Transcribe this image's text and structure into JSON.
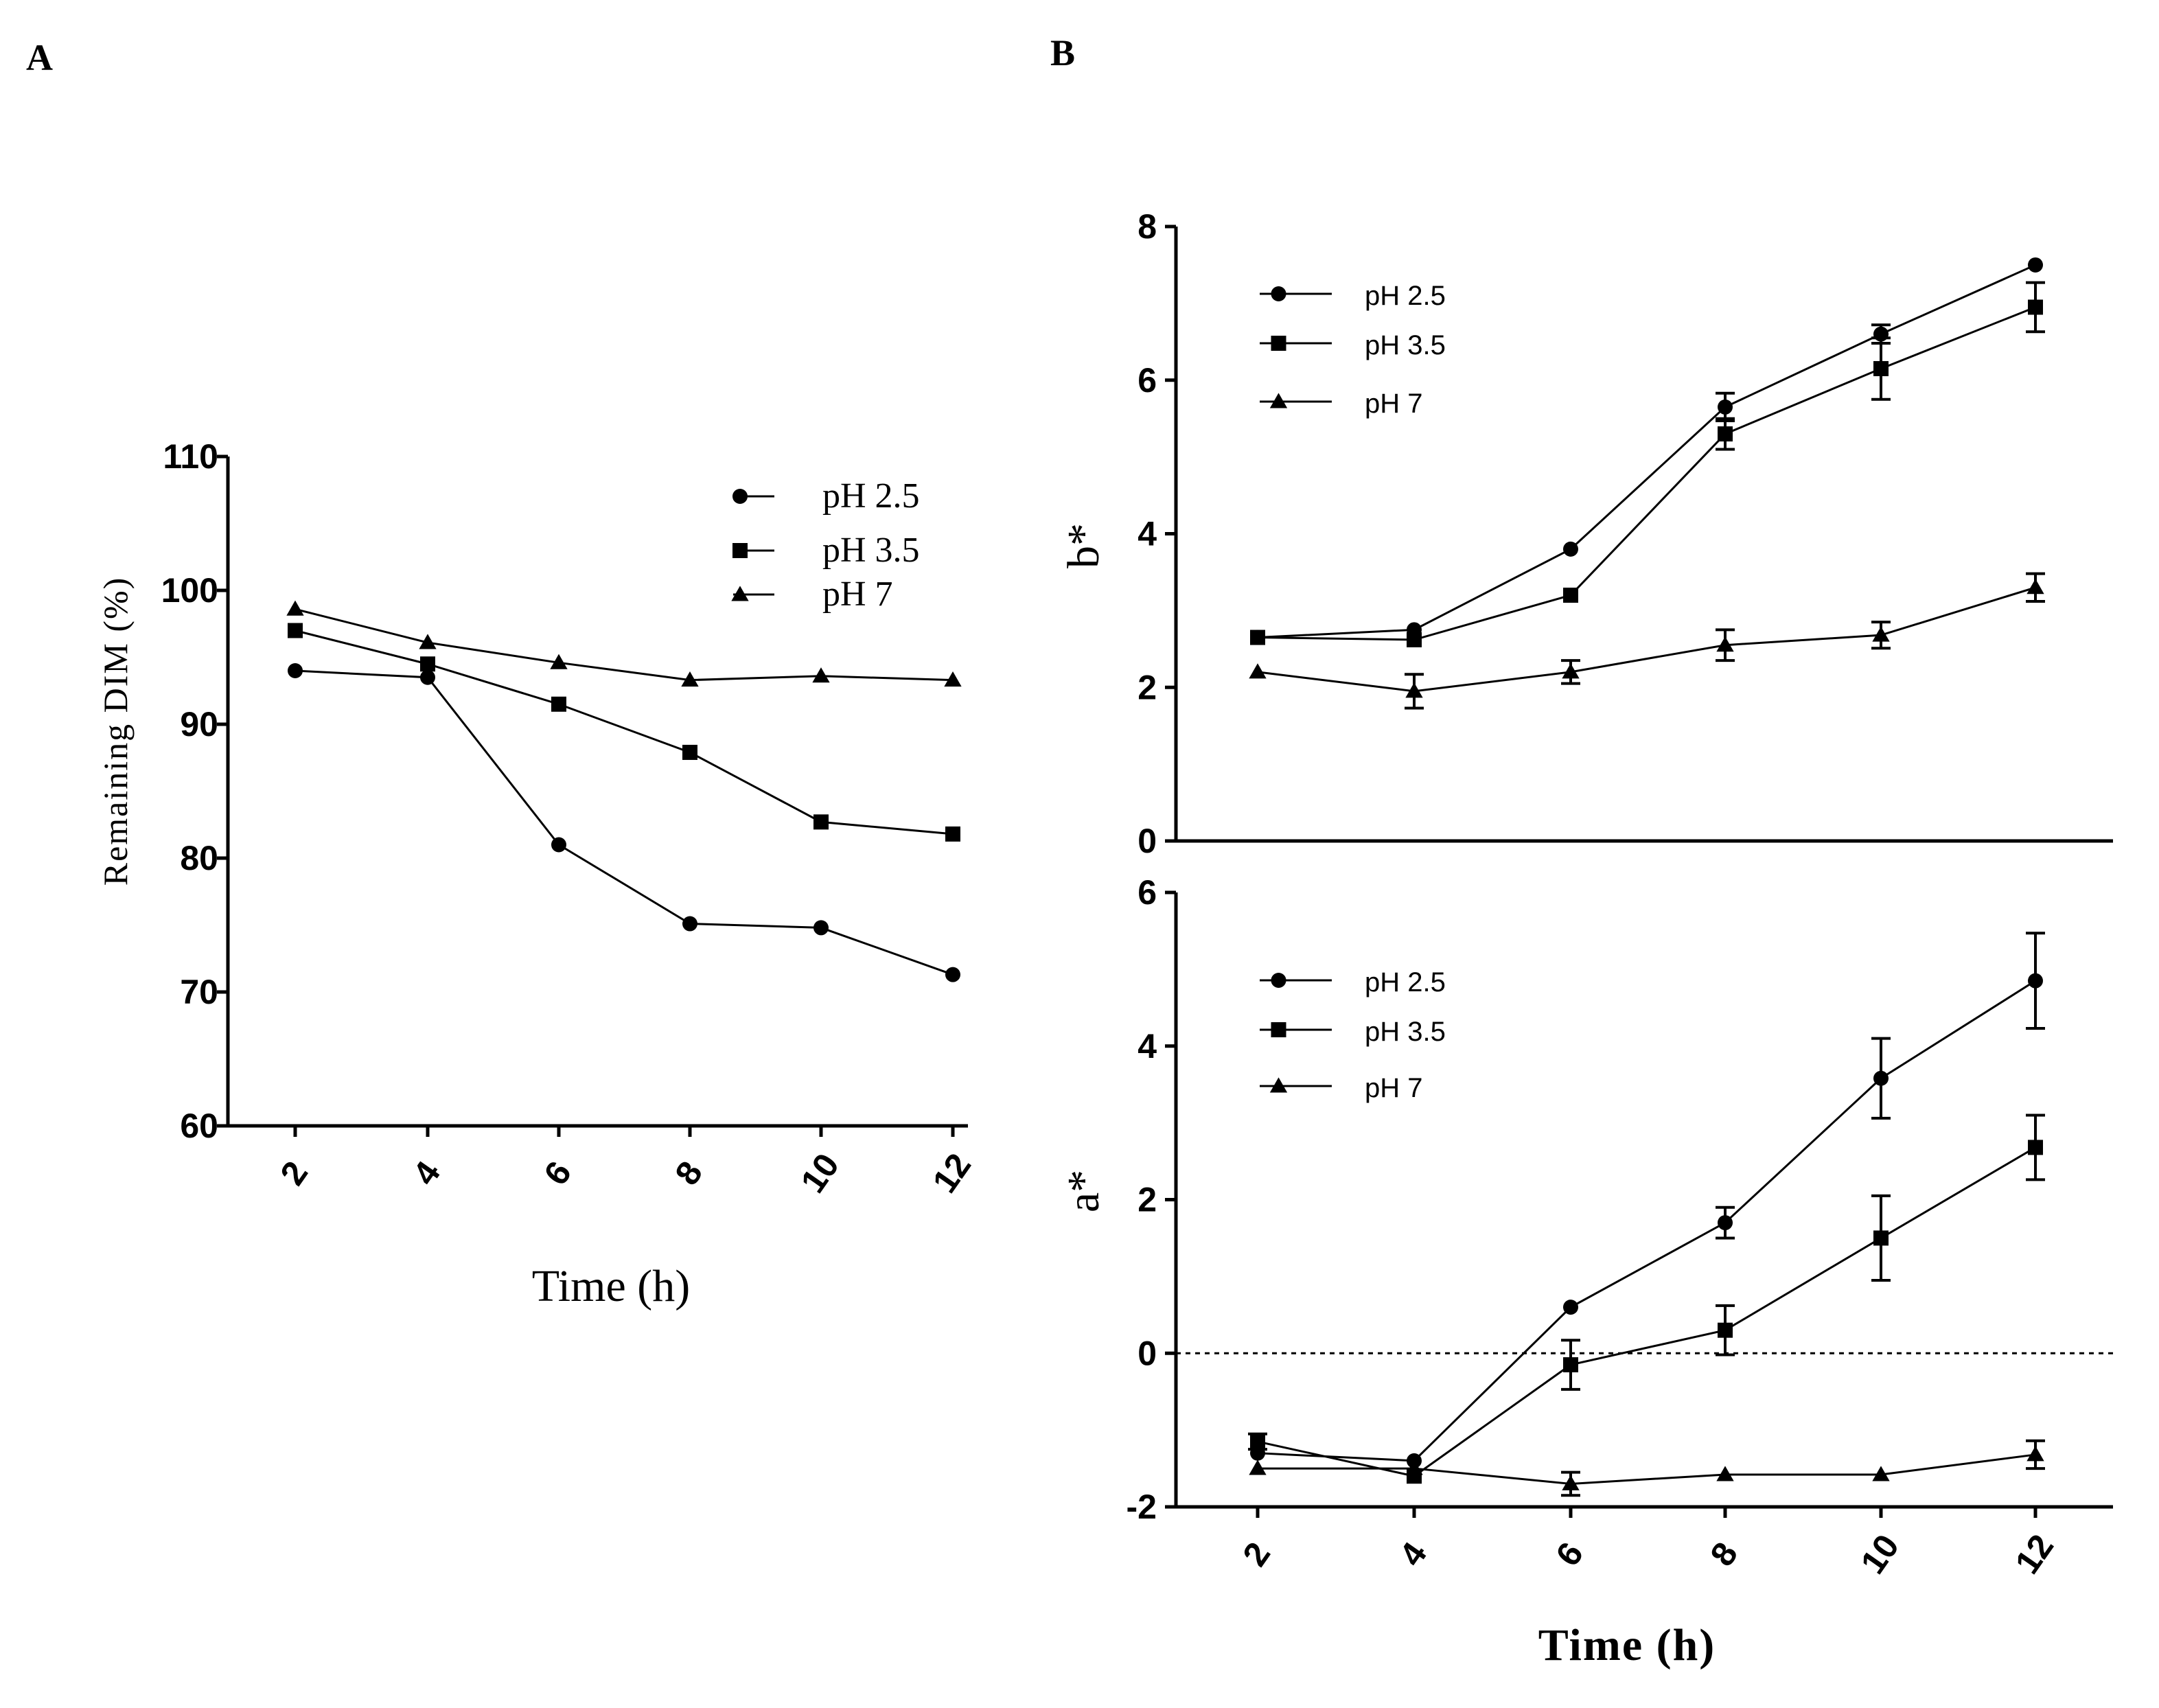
{
  "panels": {
    "A": {
      "letter": "A"
    },
    "B": {
      "letter": "B"
    }
  },
  "chart_data": [
    {
      "id": "A",
      "type": "line",
      "title": "",
      "xlabel": "Time (h)",
      "ylabel": "Remaining DIM (%)",
      "x": [
        2,
        4,
        6,
        8,
        10,
        12
      ],
      "ylim": [
        60,
        110
      ],
      "yticks": [
        60,
        70,
        80,
        90,
        100,
        110
      ],
      "legend_position": "top-right",
      "series": [
        {
          "name": "pH 2.5",
          "marker": "circle",
          "values": [
            94,
            93.5,
            81,
            75.1,
            74.8,
            71.3
          ]
        },
        {
          "name": "pH 3.5",
          "marker": "square",
          "values": [
            97,
            94.5,
            91.5,
            87.9,
            82.7,
            81.8
          ]
        },
        {
          "name": "pH 7",
          "marker": "triangle",
          "values": [
            98.6,
            96.1,
            94.6,
            93.3,
            93.6,
            93.3
          ]
        }
      ]
    },
    {
      "id": "B-top",
      "type": "line",
      "title": "",
      "xlabel": "",
      "ylabel": "b*",
      "x": [
        2,
        4,
        6,
        8,
        10,
        12
      ],
      "ylim": [
        0,
        8
      ],
      "yticks": [
        0,
        2,
        4,
        6,
        8
      ],
      "zero_line": true,
      "legend_position": "top-left",
      "series": [
        {
          "name": "pH 2.5",
          "marker": "circle",
          "values": [
            2.65,
            2.75,
            3.8,
            5.65,
            6.6,
            7.5
          ],
          "errors": [
            0,
            0,
            0,
            0.18,
            0.12,
            0
          ]
        },
        {
          "name": "pH 3.5",
          "marker": "square",
          "values": [
            2.65,
            2.62,
            3.2,
            5.3,
            6.15,
            6.95
          ],
          "errors": [
            0,
            0,
            0,
            0.2,
            0.4,
            0.32
          ]
        },
        {
          "name": "pH 7",
          "marker": "triangle",
          "values": [
            2.2,
            1.95,
            2.2,
            2.55,
            2.68,
            3.3
          ],
          "errors": [
            0,
            0.22,
            0.15,
            0.2,
            0.17,
            0.18
          ]
        }
      ]
    },
    {
      "id": "B-bottom",
      "type": "line",
      "title": "",
      "xlabel": "Time (h)",
      "ylabel": "a*",
      "x": [
        2,
        4,
        6,
        8,
        10,
        12
      ],
      "ylim": [
        -2,
        6
      ],
      "yticks": [
        -2,
        0,
        2,
        4,
        6
      ],
      "zero_line": true,
      "legend_position": "top-left",
      "series": [
        {
          "name": "pH 2.5",
          "marker": "circle",
          "values": [
            -1.3,
            -1.4,
            0.6,
            1.7,
            3.58,
            4.85
          ],
          "errors": [
            0,
            0,
            0,
            0.2,
            0.52,
            0.62
          ]
        },
        {
          "name": "pH 3.5",
          "marker": "square",
          "values": [
            -1.15,
            -1.6,
            -0.15,
            0.3,
            1.5,
            2.68
          ],
          "errors": [
            0.1,
            0,
            0.32,
            0.32,
            0.55,
            0.42
          ]
        },
        {
          "name": "pH 7",
          "marker": "triangle",
          "values": [
            -1.5,
            -1.5,
            -1.7,
            -1.58,
            -1.58,
            -1.32
          ],
          "errors": [
            0,
            0,
            0.15,
            0,
            0,
            0.18
          ]
        }
      ]
    }
  ]
}
